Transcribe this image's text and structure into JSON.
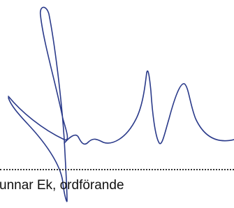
{
  "signature_caption": "unnar Ek, ordförande"
}
